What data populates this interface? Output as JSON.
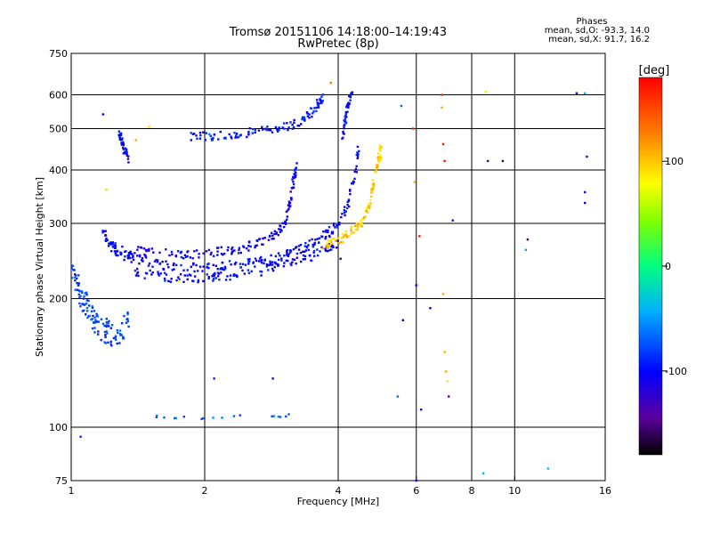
{
  "header": {
    "title_line1": "Tromsø 20151106 14:18:00–14:19:43",
    "title_line2": "RwPretec (8p)"
  },
  "phase_box": {
    "title": "Phases",
    "line_o": "mean, sd,O: -93.3, 14.0",
    "line_x": "mean, sd,X:  91.7, 16.2"
  },
  "colorbar": {
    "unit_label": "[deg]",
    "ticks": [
      {
        "value": 100,
        "label": "100"
      },
      {
        "value": 0,
        "label": "0"
      },
      {
        "value": -100,
        "label": "-100"
      }
    ],
    "range": [
      -180,
      180
    ]
  },
  "chart_data": {
    "type": "scatter",
    "title": "Tromsø 20151106 14:18:00–14:19:43",
    "subtitle": "RwPretec (8p)",
    "xlabel": "Frequency [MHz]",
    "ylabel": "Stationary phase Virtual Height [km]",
    "xscale": "log",
    "yscale": "log",
    "xlim": [
      1,
      16
    ],
    "ylim": [
      75,
      750
    ],
    "x_ticks": [
      {
        "value": 1,
        "label": "1"
      },
      {
        "value": 2,
        "label": "2"
      },
      {
        "value": 4,
        "label": "4"
      },
      {
        "value": 6,
        "label": "6"
      },
      {
        "value": 8,
        "label": "8"
      },
      {
        "value": 10,
        "label": "10"
      },
      {
        "value": 16,
        "label": "16"
      }
    ],
    "y_ticks": [
      {
        "value": 75,
        "label": "75"
      },
      {
        "value": 100,
        "label": "100"
      },
      {
        "value": 200,
        "label": "200"
      },
      {
        "value": 300,
        "label": "300"
      },
      {
        "value": 400,
        "label": "400"
      },
      {
        "value": 500,
        "label": "500"
      },
      {
        "value": 600,
        "label": "600"
      },
      {
        "value": 750,
        "label": "750"
      }
    ],
    "grid": true,
    "color_variable": "phase [deg]",
    "traces": [
      {
        "kind": "low_cluster",
        "phase": -80,
        "points": [
          [
            1.0,
            230
          ],
          [
            1.03,
            215
          ],
          [
            1.05,
            205
          ],
          [
            1.08,
            195
          ],
          [
            1.1,
            185
          ],
          [
            1.13,
            178
          ],
          [
            1.16,
            172
          ],
          [
            1.2,
            168
          ],
          [
            1.25,
            166
          ],
          [
            1.3,
            168
          ],
          [
            1.35,
            175
          ]
        ]
      },
      {
        "kind": "o_lower_F",
        "phase": -100,
        "points": [
          [
            1.18,
            290
          ],
          [
            1.22,
            265
          ],
          [
            1.28,
            255
          ],
          [
            1.35,
            250
          ],
          [
            1.45,
            245
          ],
          [
            1.6,
            240
          ],
          [
            1.8,
            238
          ],
          [
            2.0,
            237
          ],
          [
            2.2,
            238
          ],
          [
            2.4,
            240
          ],
          [
            2.6,
            243
          ],
          [
            2.8,
            247
          ],
          [
            3.0,
            252
          ],
          [
            3.2,
            258
          ],
          [
            3.4,
            265
          ],
          [
            3.6,
            275
          ],
          [
            3.8,
            285
          ],
          [
            4.0,
            300
          ],
          [
            4.2,
            330
          ],
          [
            4.35,
            380
          ],
          [
            4.45,
            450
          ]
        ]
      },
      {
        "kind": "o_upper_F",
        "phase": -105,
        "points": [
          [
            1.2,
            270
          ],
          [
            1.3,
            262
          ],
          [
            1.45,
            257
          ],
          [
            1.6,
            255
          ],
          [
            1.8,
            254
          ],
          [
            2.0,
            255
          ],
          [
            2.2,
            258
          ],
          [
            2.4,
            262
          ],
          [
            2.6,
            268
          ],
          [
            2.8,
            276
          ],
          [
            2.95,
            290
          ],
          [
            3.05,
            310
          ],
          [
            3.12,
            340
          ],
          [
            3.18,
            380
          ],
          [
            3.22,
            420
          ]
        ]
      },
      {
        "kind": "o_bottom_band",
        "phase": -100,
        "points": [
          [
            1.4,
            230
          ],
          [
            1.55,
            226
          ],
          [
            1.7,
            224
          ],
          [
            1.9,
            223
          ],
          [
            2.1,
            224
          ],
          [
            2.3,
            226
          ],
          [
            2.6,
            230
          ],
          [
            2.9,
            236
          ],
          [
            3.2,
            243
          ],
          [
            3.5,
            252
          ],
          [
            3.8,
            262
          ],
          [
            4.0,
            272
          ]
        ]
      },
      {
        "kind": "x_trace",
        "phase": 100,
        "points": [
          [
            3.7,
            265
          ],
          [
            3.9,
            270
          ],
          [
            4.1,
            278
          ],
          [
            4.3,
            288
          ],
          [
            4.5,
            300
          ],
          [
            4.65,
            320
          ],
          [
            4.75,
            350
          ],
          [
            4.85,
            390
          ],
          [
            4.95,
            430
          ],
          [
            5.0,
            450
          ]
        ]
      },
      {
        "kind": "multihop_E",
        "phase": -95,
        "points": [
          [
            1.85,
            480
          ],
          [
            2.05,
            478
          ],
          [
            2.25,
            482
          ],
          [
            2.5,
            488
          ],
          [
            2.75,
            495
          ],
          [
            3.0,
            503
          ],
          [
            3.25,
            515
          ],
          [
            3.45,
            540
          ],
          [
            3.6,
            570
          ],
          [
            3.7,
            595
          ]
        ]
      },
      {
        "kind": "multihop_F",
        "phase": -100,
        "points": [
          [
            4.1,
            470
          ],
          [
            4.15,
            520
          ],
          [
            4.22,
            570
          ],
          [
            4.3,
            610
          ]
        ]
      },
      {
        "kind": "early_echo",
        "phase": -100,
        "points": [
          [
            1.28,
            490
          ],
          [
            1.3,
            470
          ],
          [
            1.32,
            445
          ],
          [
            1.35,
            425
          ]
        ]
      },
      {
        "kind": "sporadic_E",
        "phase": -70,
        "points": [
          [
            1.5,
            106
          ],
          [
            1.65,
            106
          ],
          [
            1.95,
            105
          ],
          [
            2.15,
            106
          ],
          [
            2.75,
            106
          ],
          [
            2.95,
            106
          ],
          [
            3.1,
            107
          ]
        ]
      }
    ],
    "isolated_points": [
      [
        1.05,
        95,
        -90
      ],
      [
        1.18,
        540,
        -110
      ],
      [
        1.2,
        360,
        60
      ],
      [
        1.4,
        470,
        110
      ],
      [
        1.5,
        505,
        90
      ],
      [
        1.75,
        220,
        80
      ],
      [
        2.05,
        485,
        -60
      ],
      [
        2.1,
        130,
        -90
      ],
      [
        2.85,
        130,
        -110
      ],
      [
        3.85,
        640,
        130
      ],
      [
        4.05,
        248,
        -160
      ],
      [
        5.55,
        565,
        -70
      ],
      [
        5.9,
        500,
        165
      ],
      [
        5.95,
        375,
        110
      ],
      [
        6.0,
        215,
        -110
      ],
      [
        6.0,
        75,
        -110
      ],
      [
        6.1,
        280,
        170
      ],
      [
        6.15,
        110,
        -95
      ],
      [
        5.6,
        178,
        -100
      ],
      [
        5.45,
        118,
        -70
      ],
      [
        6.45,
        190,
        -100
      ],
      [
        6.85,
        600,
        160
      ],
      [
        6.85,
        560,
        110
      ],
      [
        6.9,
        460,
        170
      ],
      [
        6.95,
        420,
        175
      ],
      [
        6.9,
        205,
        110
      ],
      [
        6.95,
        150,
        110
      ],
      [
        7.0,
        135,
        110
      ],
      [
        7.05,
        128,
        90
      ],
      [
        7.1,
        118,
        -140
      ],
      [
        7.25,
        305,
        -110
      ],
      [
        8.6,
        610,
        70
      ],
      [
        8.7,
        420,
        -150
      ],
      [
        9.4,
        420,
        -160
      ],
      [
        8.5,
        78,
        -40
      ],
      [
        10.7,
        275,
        -160
      ],
      [
        10.6,
        260,
        -50
      ],
      [
        11.9,
        80,
        -40
      ],
      [
        13.8,
        605,
        -110
      ],
      [
        14.4,
        605,
        -40
      ],
      [
        14.4,
        355,
        -95
      ],
      [
        14.4,
        335,
        -100
      ],
      [
        14.55,
        430,
        -120
      ]
    ]
  }
}
